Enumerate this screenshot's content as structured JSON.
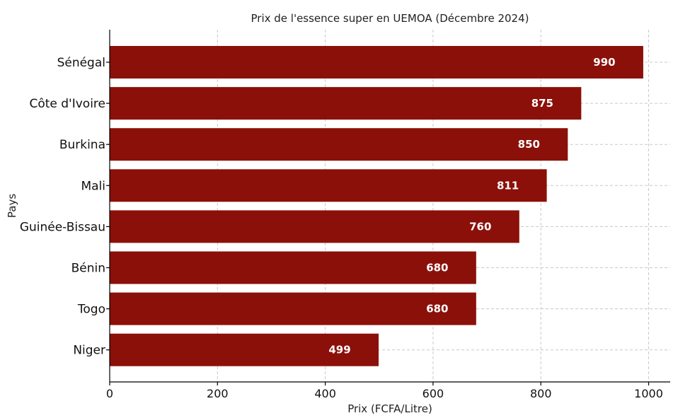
{
  "chart_data": {
    "type": "bar",
    "orientation": "horizontal",
    "title": "Prix de l'essence super en UEMOA (Décembre 2024)",
    "xlabel": "Prix (FCFA/Litre)",
    "ylabel": "Pays",
    "categories": [
      "Sénégal",
      "Côte d'Ivoire",
      "Burkina",
      "Mali",
      "Guinée-Bissau",
      "Bénin",
      "Togo",
      "Niger"
    ],
    "values": [
      990,
      875,
      850,
      811,
      760,
      680,
      680,
      499
    ],
    "xlim": [
      0,
      1040
    ],
    "xticks": [
      0,
      200,
      400,
      600,
      800,
      1000
    ],
    "grid": true,
    "bar_color": "#8b1009",
    "data_labels": true
  }
}
